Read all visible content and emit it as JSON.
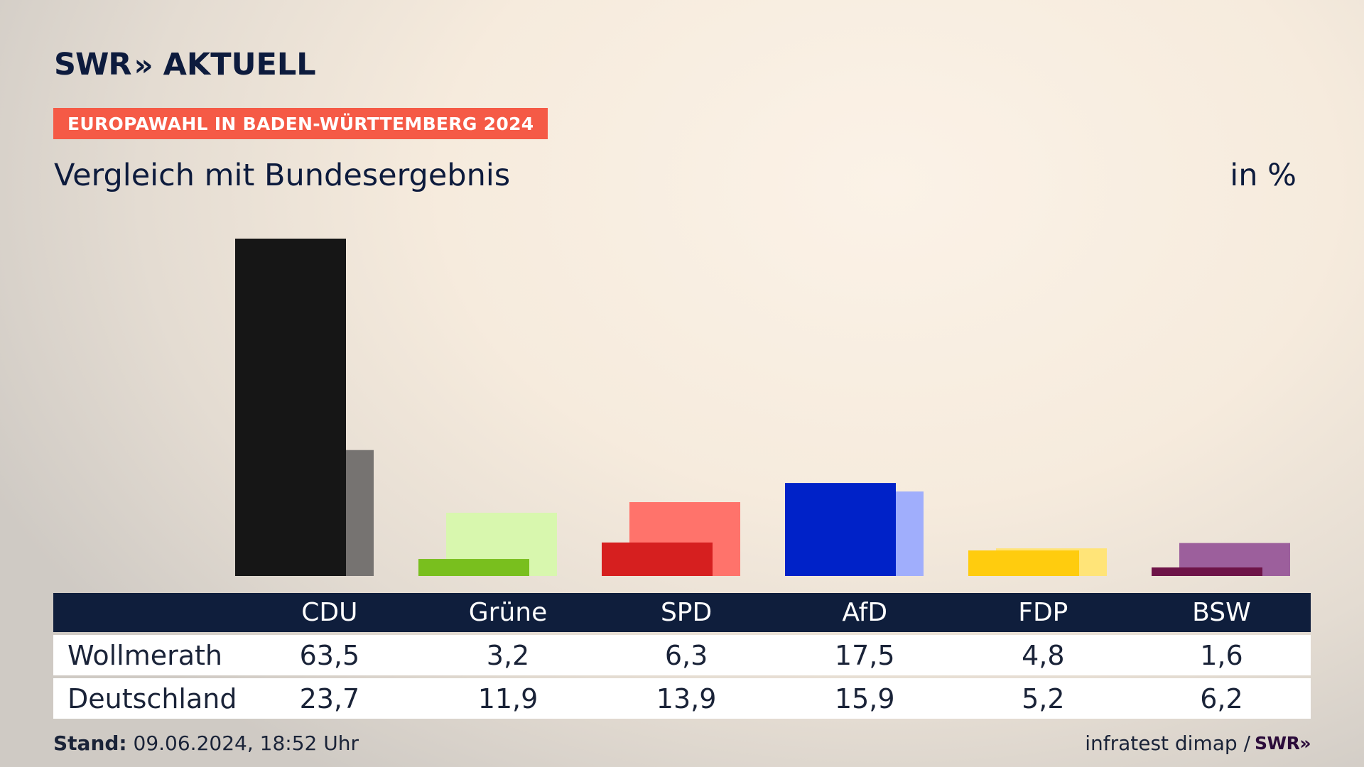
{
  "header": {
    "logo_left": "SWR",
    "logo_chevrons": "»",
    "logo_right": "AKTUELL",
    "badge": "EUROPAWAHL IN BADEN-WÜRTTEMBERG 2024",
    "subtitle": "Vergleich mit Bundesergebnis",
    "unit": "in %"
  },
  "colors": {
    "CDU": [
      "#161616",
      "#767371"
    ],
    "Grüne": [
      "#79bf1e",
      "#d8f7ae"
    ],
    "SPD": [
      "#d61f1f",
      "#ff736b"
    ],
    "AfD": [
      "#0022c8",
      "#a0aefc"
    ],
    "FDP": [
      "#ffcc0e",
      "#ffe478"
    ],
    "BSW": [
      "#6e1448",
      "#9c5f9c"
    ]
  },
  "chart_data": {
    "type": "bar",
    "categories": [
      "CDU",
      "Grüne",
      "SPD",
      "AfD",
      "FDP",
      "BSW"
    ],
    "series": [
      {
        "name": "Wollmerath",
        "values": [
          63.5,
          3.2,
          6.3,
          17.5,
          4.8,
          1.6
        ]
      },
      {
        "name": "Deutschland",
        "values": [
          23.7,
          11.9,
          13.9,
          15.9,
          5.2,
          6.2
        ]
      }
    ],
    "title": "Vergleich mit Bundesergebnis",
    "ylabel": "in %",
    "ylim": [
      0,
      63.5
    ],
    "grid": false
  },
  "table": {
    "rows": [
      {
        "label": "Wollmerath",
        "values": [
          "63,5",
          "3,2",
          "6,3",
          "17,5",
          "4,8",
          "1,6"
        ]
      },
      {
        "label": "Deutschland",
        "values": [
          "23,7",
          "11,9",
          "13,9",
          "15,9",
          "5,2",
          "6,2"
        ]
      }
    ]
  },
  "footer": {
    "stand_label": "Stand:",
    "stand_value": " 09.06.2024, 18:52 Uhr",
    "source": "infratest dimap /",
    "source_logo": "SWR»"
  }
}
